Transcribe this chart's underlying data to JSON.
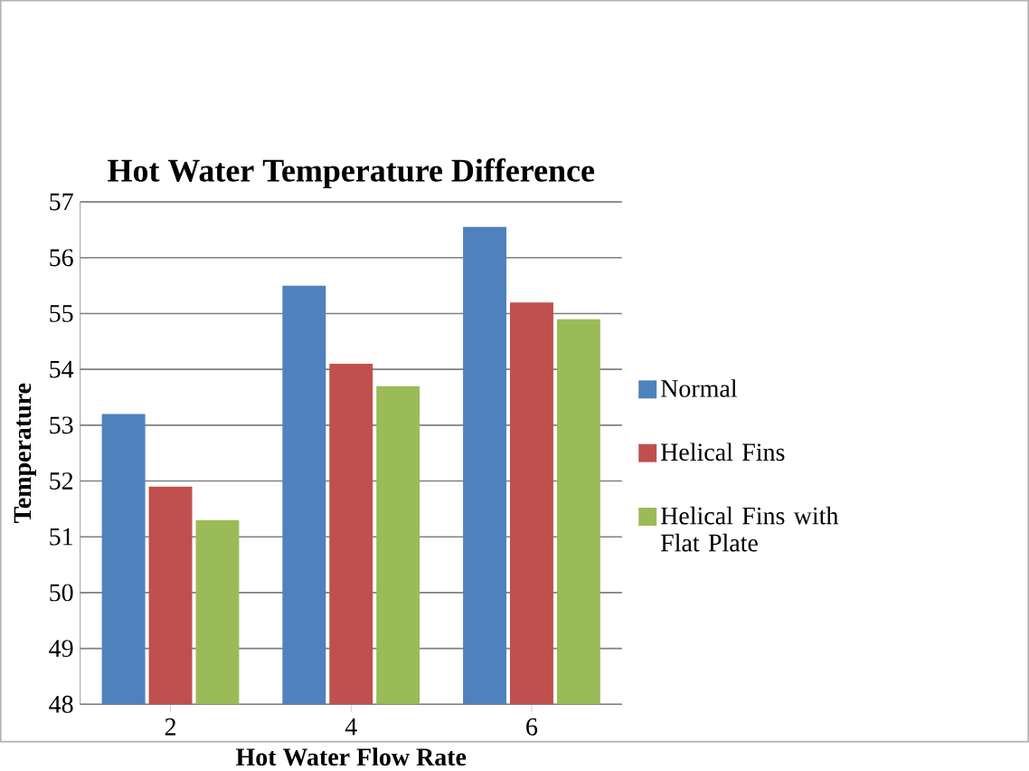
{
  "chart_data": {
    "type": "bar",
    "title": "Hot Water Temperature Difference",
    "xlabel": "Hot Water Flow Rate",
    "ylabel": "Temperature",
    "categories": [
      "2",
      "4",
      "6"
    ],
    "series": [
      {
        "name": "Normal",
        "color": "#4f81bd",
        "values": [
          53.2,
          55.5,
          56.55
        ]
      },
      {
        "name": "Helical Fins",
        "color": "#c0504d",
        "values": [
          51.9,
          54.1,
          55.2
        ]
      },
      {
        "name": "Helical Fins with Flat Plate",
        "color": "#9bbb59",
        "values": [
          51.3,
          53.7,
          54.9
        ]
      }
    ],
    "ylim": [
      48,
      57
    ],
    "yticks": [
      48,
      49,
      50,
      51,
      52,
      53,
      54,
      55,
      56,
      57
    ],
    "grid": "y",
    "legend": "right"
  }
}
